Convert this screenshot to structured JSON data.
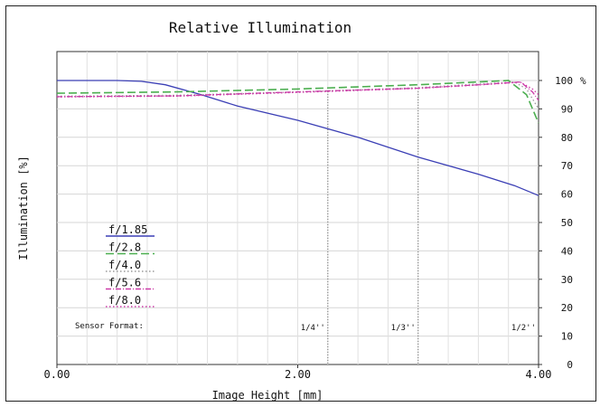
{
  "chart_data": {
    "type": "line",
    "title": "Relative Illumination",
    "xlabel": "Image Height [mm]",
    "ylabel": "Illumination [%]",
    "y_unit": "%",
    "xlim": [
      0,
      4
    ],
    "ylim": [
      0,
      100
    ],
    "x_ticks": [
      "0.00",
      "2.00",
      "4.00"
    ],
    "y_ticks": [
      "0",
      "10",
      "20",
      "30",
      "40",
      "50",
      "60",
      "70",
      "80",
      "90",
      "100"
    ],
    "grid": true,
    "legend_placement": "left",
    "colors": {
      "f185": "#3b3fb5",
      "f28": "#4caf50",
      "f40": "#9c9c9c",
      "f56": "#cc3aa8",
      "f80": "#cc3aa8"
    },
    "series": [
      {
        "name": "f/1.85",
        "color": "#3b3fb5",
        "style": "solid",
        "x": [
          0.0,
          0.5,
          0.7,
          0.9,
          1.2,
          1.5,
          2.0,
          2.5,
          3.0,
          3.5,
          3.8,
          4.0
        ],
        "y": [
          100,
          100,
          99.7,
          98.5,
          95,
          91,
          86,
          80,
          73,
          67,
          63,
          59.5
        ]
      },
      {
        "name": "f/2.8",
        "color": "#4caf50",
        "style": "dashed",
        "x": [
          0.0,
          1.0,
          2.0,
          3.0,
          3.5,
          3.75,
          3.9,
          4.0
        ],
        "y": [
          95.5,
          96.0,
          97.0,
          98.5,
          99.5,
          100,
          95,
          85
        ]
      },
      {
        "name": "f/4.0",
        "color": "#9c9c9c",
        "style": "dotted",
        "x": [
          0.0,
          1.0,
          2.0,
          3.0,
          3.5,
          3.8,
          3.9,
          4.0
        ],
        "y": [
          94.5,
          94.8,
          96,
          97.5,
          98.8,
          99.5,
          97,
          90
        ]
      },
      {
        "name": "f/5.6",
        "color": "#cc3aa8",
        "style": "dashdot",
        "x": [
          0.0,
          1.0,
          2.0,
          3.0,
          3.5,
          3.85,
          3.95,
          4.0
        ],
        "y": [
          94.3,
          94.6,
          96,
          97.3,
          98.5,
          99.5,
          96,
          93
        ]
      },
      {
        "name": "f/8.0",
        "color": "#cc3aa8",
        "style": "dotted",
        "x": [
          0.0,
          1.0,
          2.0,
          3.0,
          3.5,
          3.85,
          3.95,
          4.0
        ],
        "y": [
          94.2,
          94.5,
          95.8,
          97.2,
          98.4,
          99.4,
          97,
          95
        ]
      }
    ],
    "annotations": {
      "sensor_label": "Sensor Format:",
      "markers": [
        {
          "label": "1/4''",
          "x": 2.25
        },
        {
          "label": "1/3''",
          "x": 3.0
        },
        {
          "label": "1/2''",
          "x": 4.0
        }
      ]
    }
  }
}
